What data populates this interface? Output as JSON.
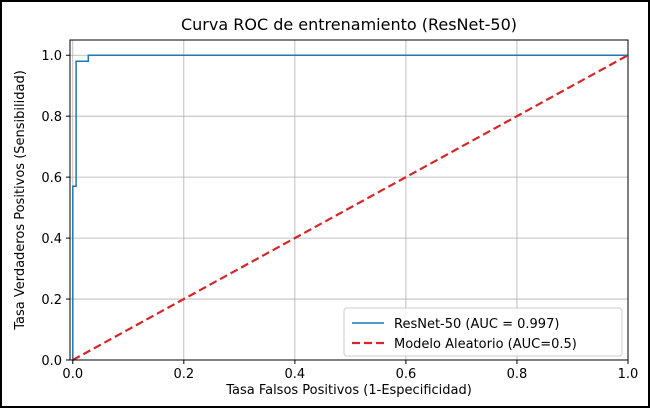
{
  "chart_data": {
    "type": "line",
    "title": "Curva ROC de entrenamiento (ResNet-50)",
    "xlabel": "Tasa Falsos Positivos (1-Especificidad)",
    "ylabel": "Tasa Verdaderos Positivos (Sensibilidad)",
    "xlim": [
      -0.005,
      1.0
    ],
    "ylim": [
      0.0,
      1.05
    ],
    "xticks": [
      "0.0",
      "0.2",
      "0.4",
      "0.6",
      "0.8",
      "1.0"
    ],
    "yticks": [
      "0.0",
      "0.2",
      "0.4",
      "0.6",
      "0.8",
      "1.0"
    ],
    "grid": true,
    "legend_position": "lower-right",
    "series": [
      {
        "name": "ResNet-50 (AUC = 0.997)",
        "color": "#1f77b4",
        "style": "solid",
        "x": [
          0.0,
          0.0,
          0.0,
          0.0,
          0.006,
          0.006,
          0.028,
          0.028,
          1.0
        ],
        "y": [
          0.0,
          0.01,
          0.57,
          0.57,
          0.57,
          0.98,
          0.98,
          1.0,
          1.0
        ]
      },
      {
        "name": "Modelo Aleatorio (AUC=0.5)",
        "color": "#d62728",
        "style": "dashed",
        "x": [
          0.0,
          1.0
        ],
        "y": [
          0.0,
          1.0
        ]
      }
    ]
  }
}
